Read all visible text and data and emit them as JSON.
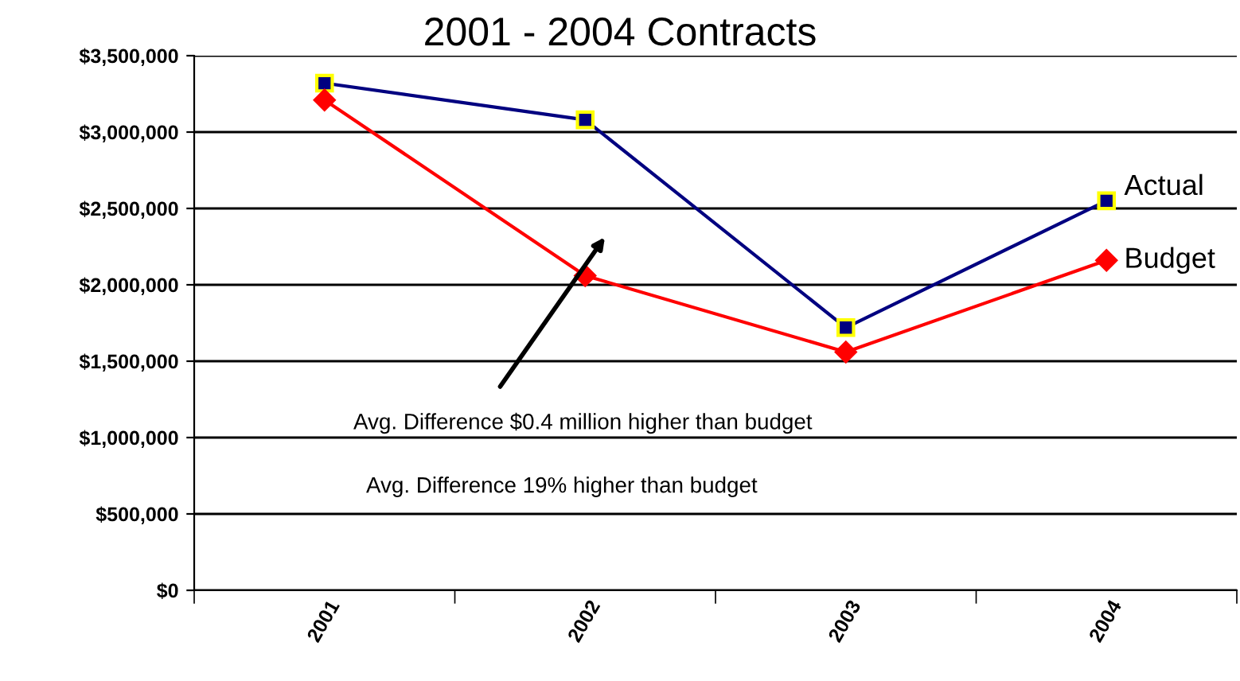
{
  "chart_data": {
    "type": "line",
    "title": "2001 - 2004 Contracts",
    "categories": [
      "2001",
      "2002",
      "2003",
      "2004"
    ],
    "series": [
      {
        "name": "Actual",
        "color": "#000080",
        "marker": "square",
        "values": [
          3320000,
          3080000,
          1720000,
          2550000
        ]
      },
      {
        "name": "Budget",
        "color": "#ff0000",
        "marker": "diamond",
        "values": [
          3210000,
          2060000,
          1560000,
          2160000
        ]
      }
    ],
    "ylim": [
      0,
      3500000
    ],
    "yticks": [
      {
        "value": 0,
        "label": "$0"
      },
      {
        "value": 500000,
        "label": "$500,000"
      },
      {
        "value": 1000000,
        "label": "$1,000,000"
      },
      {
        "value": 1500000,
        "label": "$1,500,000"
      },
      {
        "value": 2000000,
        "label": "$2,000,000"
      },
      {
        "value": 2500000,
        "label": "$2,500,000"
      },
      {
        "value": 3000000,
        "label": "$3,000,000"
      },
      {
        "value": 3500000,
        "label": "$3,500,000"
      }
    ],
    "grid": "y",
    "legend": false,
    "annotations": [
      "Avg. Difference $0.4 million higher than budget",
      "Avg. Difference 19% higher than budget"
    ]
  }
}
